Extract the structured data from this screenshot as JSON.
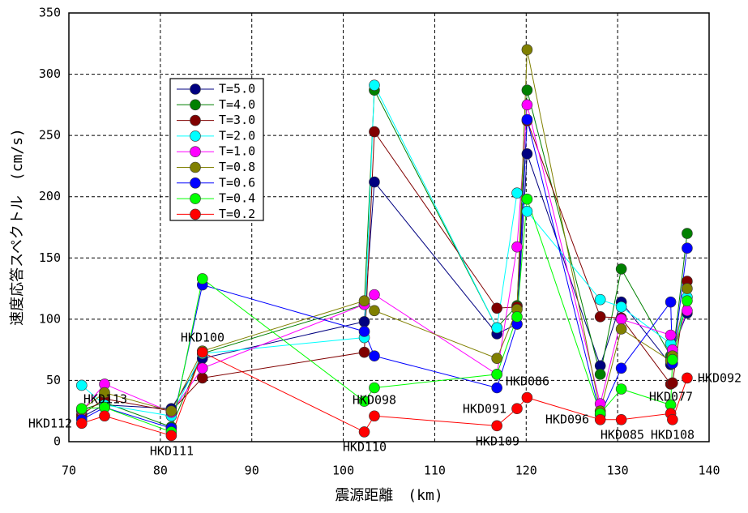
{
  "chart_data": {
    "type": "line",
    "x_label": "震源距離　(km)",
    "y_label": "速度応答スペクトル　(cm/s)",
    "x": [
      71.4,
      73.9,
      81.2,
      84.6,
      102.3,
      103.4,
      116.8,
      119.0,
      120.1,
      128.1,
      130.4,
      135.8,
      136.0,
      137.6
    ],
    "stations": [
      "HKD112",
      "HKD113",
      "HKD111",
      "HKD100",
      "HKD110",
      "HKD098",
      "HKD109",
      "HKD091",
      "HKD086",
      "HKD096",
      "HKD085",
      "HKD108",
      "HKD077",
      "HKD092"
    ],
    "series": [
      {
        "name": "T=5.0",
        "color": "#000080",
        "values": [
          20,
          30,
          27,
          68,
          98,
          212,
          88,
          96,
          235,
          62,
          114,
          63,
          75,
          105
        ]
      },
      {
        "name": "T=4.0",
        "color": "#008000",
        "values": [
          26,
          32,
          12,
          72,
          112,
          287,
          93,
          111,
          287,
          55,
          141,
          70,
          68,
          170
        ]
      },
      {
        "name": "T=3.0",
        "color": "#800000",
        "values": [
          22,
          35,
          25,
          52,
          73,
          253,
          109,
          110,
          262,
          102,
          101,
          47,
          48,
          131
        ]
      },
      {
        "name": "T=2.0",
        "color": "#00ffff",
        "values": [
          46,
          30,
          21,
          72,
          85,
          291,
          93,
          203,
          188,
          116,
          110,
          80,
          72,
          118
        ]
      },
      {
        "name": "T=1.0",
        "color": "#ff00ff",
        "values": [
          25,
          47,
          24,
          60,
          112,
          120,
          55,
          159,
          275,
          31,
          100,
          87,
          75,
          107
        ]
      },
      {
        "name": "T=0.8",
        "color": "#808000",
        "values": [
          26,
          40,
          25,
          74,
          115,
          107,
          68,
          108,
          320,
          25,
          92,
          66,
          70,
          125
        ]
      },
      {
        "name": "T=0.6",
        "color": "#0000ff",
        "values": [
          18,
          28,
          11,
          128,
          90,
          70,
          44,
          96,
          263,
          22,
          60,
          114,
          64,
          158
        ]
      },
      {
        "name": "T=0.4",
        "color": "#00ff00",
        "values": [
          27,
          28,
          8,
          133,
          33,
          44,
          55,
          102,
          198,
          23,
          43,
          30,
          67,
          115
        ]
      },
      {
        "name": "T=0.2",
        "color": "#ff0000",
        "values": [
          15,
          21,
          5,
          73,
          8,
          21,
          13,
          27,
          36,
          18,
          18,
          23,
          18,
          52
        ]
      }
    ],
    "xlim": [
      70,
      140
    ],
    "ylim": [
      0,
      350
    ],
    "xticks": [
      70,
      80,
      90,
      100,
      110,
      120,
      130,
      140
    ],
    "yticks": [
      0,
      50,
      100,
      150,
      200,
      250,
      300,
      350
    ],
    "grid": true
  }
}
